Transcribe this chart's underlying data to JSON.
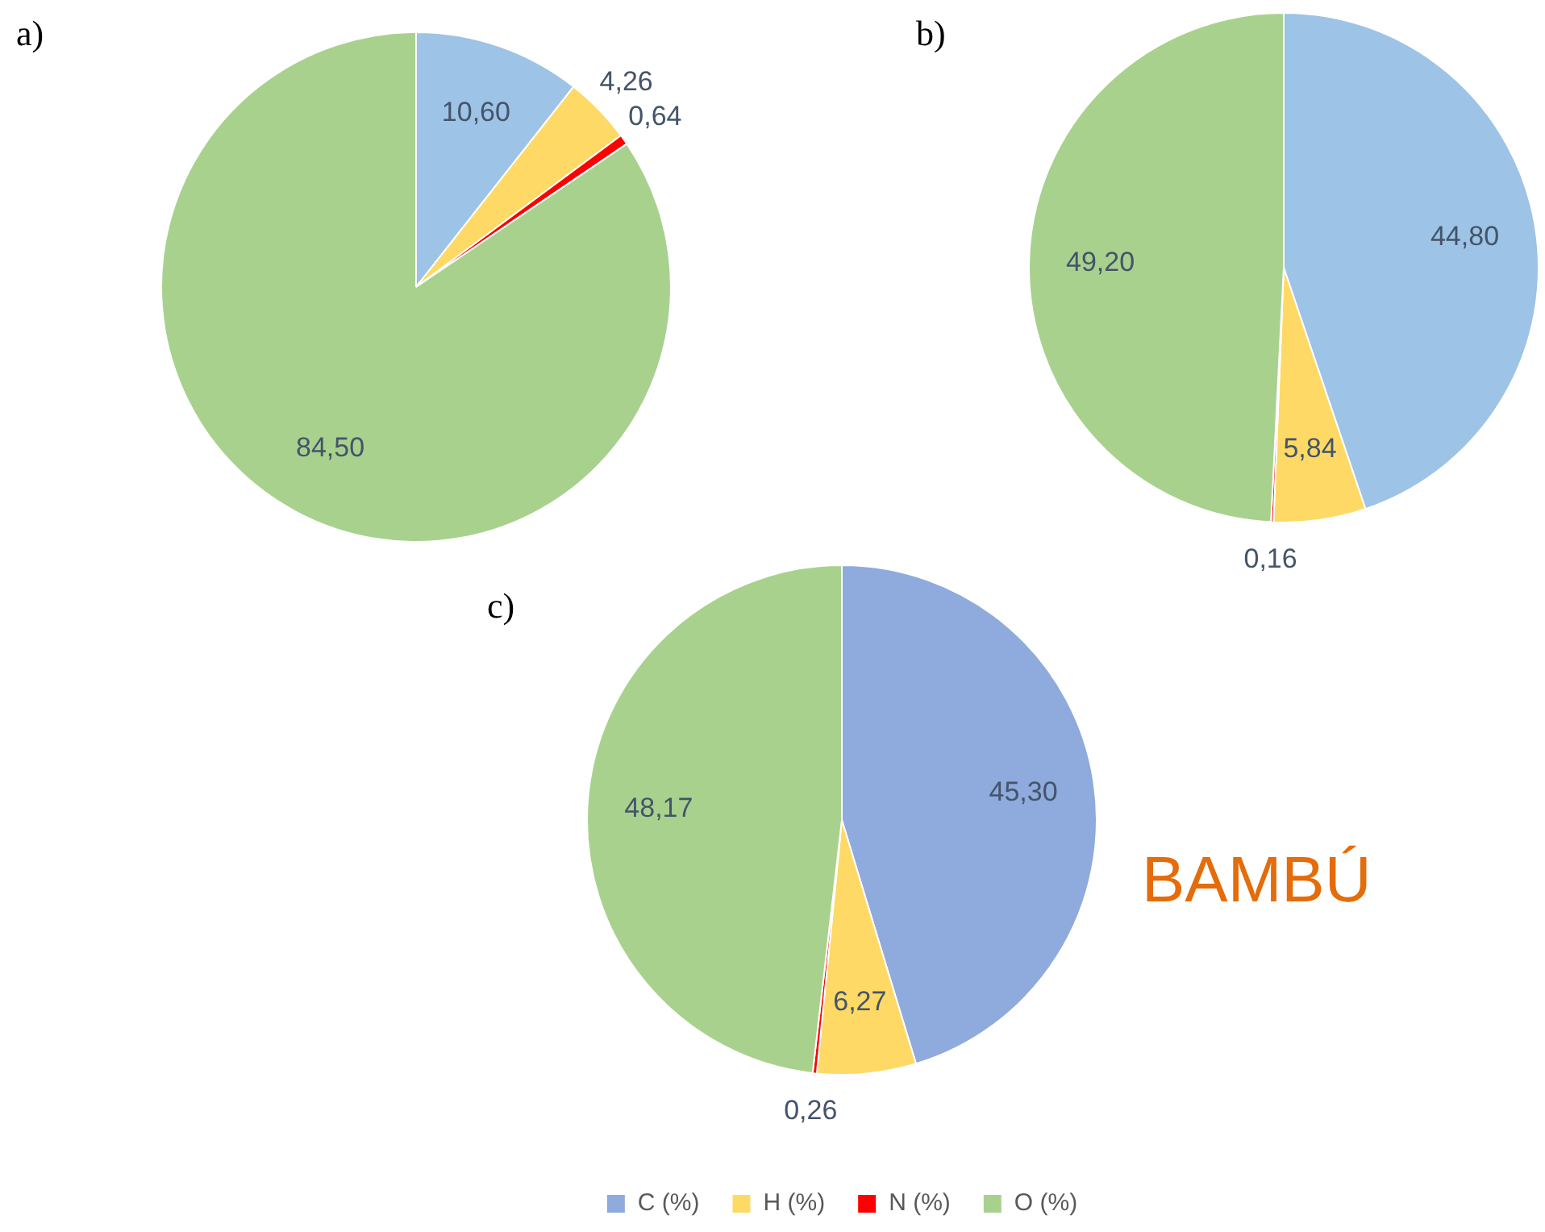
{
  "chart_data": [
    {
      "type": "pie",
      "title": "a)",
      "categories": [
        null,
        null,
        null,
        null
      ],
      "values": [
        10.6,
        4.26,
        0.64,
        84.5
      ],
      "colors": [
        "#9dc3e6",
        "#ffd966",
        "#ff0000",
        "#a9d18e"
      ],
      "value_labels": [
        "10,60",
        "4,26",
        "0,64",
        "84,50"
      ]
    },
    {
      "type": "pie",
      "title": "b)",
      "categories": [
        null,
        null,
        null,
        null
      ],
      "values": [
        44.8,
        5.84,
        0.16,
        49.2
      ],
      "colors": [
        "#9dc3e6",
        "#ffd966",
        "#ff0000",
        "#a9d18e"
      ],
      "value_labels": [
        "44,80",
        "5,84",
        "0,16",
        "49,20"
      ]
    },
    {
      "type": "pie",
      "title": "c)",
      "categories": [
        "C (%)",
        "H (%)",
        "N (%)",
        "O (%)"
      ],
      "values": [
        45.3,
        6.27,
        0.26,
        48.17
      ],
      "colors": [
        "#8faadc",
        "#ffd966",
        "#ff0000",
        "#a9d18e"
      ],
      "value_labels": [
        "45,30",
        "6,27",
        "0,26",
        "48,17"
      ],
      "legend": "bottom",
      "annotations": [
        "BAMBÚ"
      ]
    }
  ]
}
